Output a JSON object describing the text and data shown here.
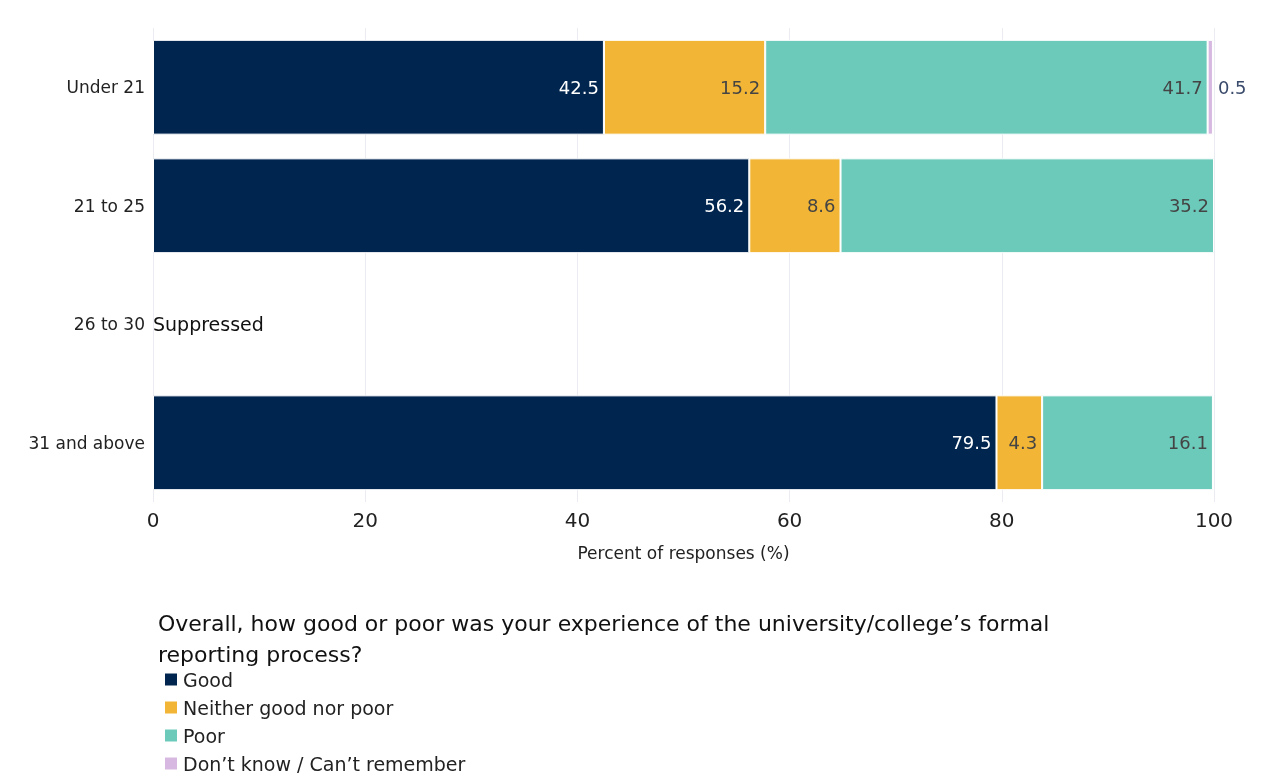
{
  "chart_data": {
    "type": "bar",
    "orientation": "horizontal",
    "stacked": true,
    "categories": [
      "Under 21",
      "21 to 25",
      "26 to 30",
      "31 and above"
    ],
    "series": [
      {
        "name": "Good",
        "color": "#00264f",
        "values": [
          42.5,
          56.2,
          null,
          79.5
        ]
      },
      {
        "name": "Neither good nor poor",
        "color": "#f2b535",
        "values": [
          15.2,
          8.6,
          null,
          4.3
        ]
      },
      {
        "name": "Poor",
        "color": "#6ccabb",
        "values": [
          41.7,
          35.2,
          null,
          16.1
        ]
      },
      {
        "name": "Don’t know / Can’t remember",
        "color": "#d7b8e0",
        "values": [
          0.5,
          null,
          null,
          null
        ]
      }
    ],
    "xlim": [
      0,
      100
    ],
    "xticks": [
      0,
      20,
      40,
      60,
      80,
      100
    ],
    "xlabel": "Percent of responses (%)",
    "legend_title": "Overall, how good or poor was your experience of the university/college’s formal reporting process?",
    "legend": "bottom left",
    "grid": "x",
    "data_labels": true,
    "annotations": [
      "Suppressed"
    ]
  }
}
